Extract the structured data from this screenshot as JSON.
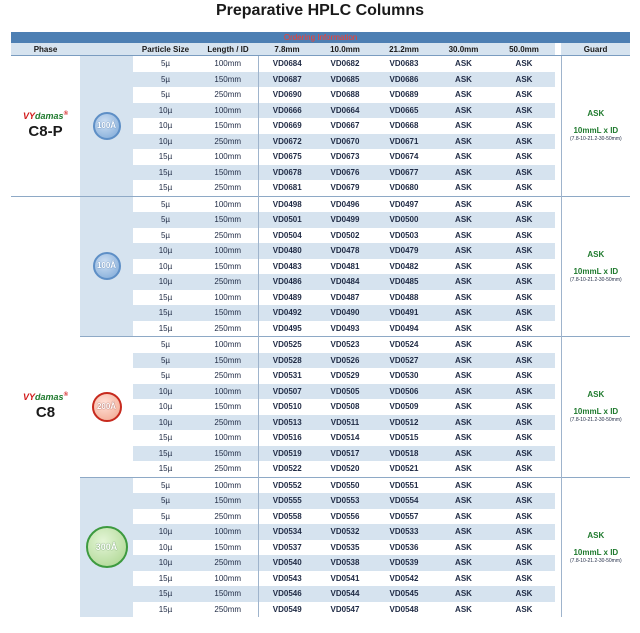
{
  "title": "Preparative HPLC Columns",
  "ordering_label": "Ordering Information",
  "columns": {
    "phase": "Phase",
    "particle_size": "Particle Size",
    "length_id": "Length / ID",
    "d1": "7.8mm",
    "d2": "10.0mm",
    "d3": "21.2mm",
    "d4": "30.0mm",
    "d5": "50.0mm",
    "guard": "Guard"
  },
  "groups": [
    {
      "brand_vy": "VY",
      "brand_rest": "damas",
      "brand_mark": "®",
      "phase": "C8-P",
      "pore": "100Å",
      "badge": "blue",
      "guard": {
        "ask": "ASK",
        "size": "10mmL x ID",
        "sub": "(7.8-10-21.2-30-50mm)"
      },
      "rows": [
        [
          "5µ",
          "100mm",
          "VD0684",
          "VD0682",
          "VD0683",
          "ASK",
          "ASK"
        ],
        [
          "5µ",
          "150mm",
          "VD0687",
          "VD0685",
          "VD0686",
          "ASK",
          "ASK"
        ],
        [
          "5µ",
          "250mm",
          "VD0690",
          "VD0688",
          "VD0689",
          "ASK",
          "ASK"
        ],
        [
          "10µ",
          "100mm",
          "VD0666",
          "VD0664",
          "VD0665",
          "ASK",
          "ASK"
        ],
        [
          "10µ",
          "150mm",
          "VD0669",
          "VD0667",
          "VD0668",
          "ASK",
          "ASK"
        ],
        [
          "10µ",
          "250mm",
          "VD0672",
          "VD0670",
          "VD0671",
          "ASK",
          "ASK"
        ],
        [
          "15µ",
          "100mm",
          "VD0675",
          "VD0673",
          "VD0674",
          "ASK",
          "ASK"
        ],
        [
          "15µ",
          "150mm",
          "VD0678",
          "VD0676",
          "VD0677",
          "ASK",
          "ASK"
        ],
        [
          "15µ",
          "250mm",
          "VD0681",
          "VD0679",
          "VD0680",
          "ASK",
          "ASK"
        ]
      ]
    },
    {
      "phase": "C8",
      "brand_vy": "VY",
      "brand_rest": "damas",
      "brand_mark": "®",
      "pore": "100Å",
      "badge": "blue",
      "guard": {
        "ask": "ASK",
        "size": "10mmL x ID",
        "sub": "(7.8-10-21.2-30-50mm)"
      },
      "rows": [
        [
          "5µ",
          "100mm",
          "VD0498",
          "VD0496",
          "VD0497",
          "ASK",
          "ASK"
        ],
        [
          "5µ",
          "150mm",
          "VD0501",
          "VD0499",
          "VD0500",
          "ASK",
          "ASK"
        ],
        [
          "5µ",
          "250mm",
          "VD0504",
          "VD0502",
          "VD0503",
          "ASK",
          "ASK"
        ],
        [
          "10µ",
          "100mm",
          "VD0480",
          "VD0478",
          "VD0479",
          "ASK",
          "ASK"
        ],
        [
          "10µ",
          "150mm",
          "VD0483",
          "VD0481",
          "VD0482",
          "ASK",
          "ASK"
        ],
        [
          "10µ",
          "250mm",
          "VD0486",
          "VD0484",
          "VD0485",
          "ASK",
          "ASK"
        ],
        [
          "15µ",
          "100mm",
          "VD0489",
          "VD0487",
          "VD0488",
          "ASK",
          "ASK"
        ],
        [
          "15µ",
          "150mm",
          "VD0492",
          "VD0490",
          "VD0491",
          "ASK",
          "ASK"
        ],
        [
          "15µ",
          "250mm",
          "VD0495",
          "VD0493",
          "VD0494",
          "ASK",
          "ASK"
        ]
      ]
    },
    {
      "pore": "200Å",
      "badge": "red",
      "guard": {
        "ask": "ASK",
        "size": "10mmL x ID",
        "sub": "(7.8-10-21.2-30-50mm)"
      },
      "rows": [
        [
          "5µ",
          "100mm",
          "VD0525",
          "VD0523",
          "VD0524",
          "ASK",
          "ASK"
        ],
        [
          "5µ",
          "150mm",
          "VD0528",
          "VD0526",
          "VD0527",
          "ASK",
          "ASK"
        ],
        [
          "5µ",
          "250mm",
          "VD0531",
          "VD0529",
          "VD0530",
          "ASK",
          "ASK"
        ],
        [
          "10µ",
          "100mm",
          "VD0507",
          "VD0505",
          "VD0506",
          "ASK",
          "ASK"
        ],
        [
          "10µ",
          "150mm",
          "VD0510",
          "VD0508",
          "VD0509",
          "ASK",
          "ASK"
        ],
        [
          "10µ",
          "250mm",
          "VD0513",
          "VD0511",
          "VD0512",
          "ASK",
          "ASK"
        ],
        [
          "15µ",
          "100mm",
          "VD0516",
          "VD0514",
          "VD0515",
          "ASK",
          "ASK"
        ],
        [
          "15µ",
          "150mm",
          "VD0519",
          "VD0517",
          "VD0518",
          "ASK",
          "ASK"
        ],
        [
          "15µ",
          "250mm",
          "VD0522",
          "VD0520",
          "VD0521",
          "ASK",
          "ASK"
        ]
      ]
    },
    {
      "pore": "300Å",
      "badge": "green",
      "guard": {
        "ask": "ASK",
        "size": "10mmL x ID",
        "sub": "(7.8-10-21.2-30-50mm)"
      },
      "rows": [
        [
          "5µ",
          "100mm",
          "VD0552",
          "VD0550",
          "VD0551",
          "ASK",
          "ASK"
        ],
        [
          "5µ",
          "150mm",
          "VD0555",
          "VD0553",
          "VD0554",
          "ASK",
          "ASK"
        ],
        [
          "5µ",
          "250mm",
          "VD0558",
          "VD0556",
          "VD0557",
          "ASK",
          "ASK"
        ],
        [
          "10µ",
          "100mm",
          "VD0534",
          "VD0532",
          "VD0533",
          "ASK",
          "ASK"
        ],
        [
          "10µ",
          "150mm",
          "VD0537",
          "VD0535",
          "VD0536",
          "ASK",
          "ASK"
        ],
        [
          "10µ",
          "250mm",
          "VD0540",
          "VD0538",
          "VD0539",
          "ASK",
          "ASK"
        ],
        [
          "15µ",
          "100mm",
          "VD0543",
          "VD0541",
          "VD0542",
          "ASK",
          "ASK"
        ],
        [
          "15µ",
          "150mm",
          "VD0546",
          "VD0544",
          "VD0545",
          "ASK",
          "ASK"
        ],
        [
          "15µ",
          "250mm",
          "VD0549",
          "VD0547",
          "VD0548",
          "ASK",
          "ASK"
        ]
      ]
    }
  ],
  "colors": {
    "header_bar": "#4d7fb3",
    "band": "#d6e3ef",
    "code_green": "#1f7a2e",
    "brand_red": "#d21a1a"
  }
}
